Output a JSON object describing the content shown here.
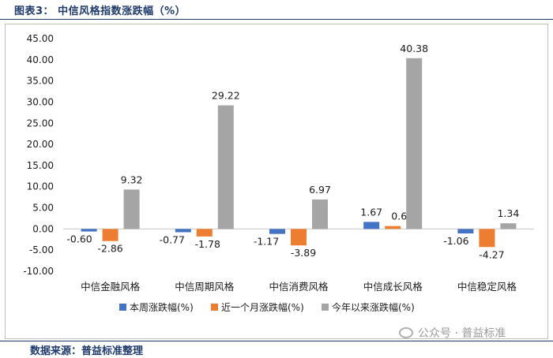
{
  "header": {
    "title": "图表3：  中信风格指数涨跌幅（%）"
  },
  "footer": {
    "source": "数据来源：普益标准整理"
  },
  "watermark": {
    "text": "公众号 · 普益标准",
    "icon": "wechat-icon"
  },
  "colors": {
    "series1": "#4472c4",
    "series2": "#ed7d31",
    "series3": "#a5a5a5",
    "rule": "#1e3a6b"
  },
  "chart_data": {
    "type": "bar",
    "categories": [
      "中信金融风格",
      "中信周期风格",
      "中信消费风格",
      "中信成长风格",
      "中信稳定风格"
    ],
    "series": [
      {
        "name": "本周涨跌幅(%)",
        "values": [
          -0.6,
          -0.77,
          -1.17,
          1.67,
          -1.06
        ],
        "labels": [
          "-0.60",
          "-0.77",
          "-1.17",
          "1.67",
          "-1.06"
        ]
      },
      {
        "name": "近一个月涨跌幅(%)",
        "values": [
          -2.86,
          -1.78,
          -3.89,
          0.69,
          -4.27
        ],
        "labels": [
          "-2.86",
          "-1.78",
          "-3.89",
          "0.69",
          "-4.27"
        ]
      },
      {
        "name": "今年以来涨跌幅(%)",
        "values": [
          9.32,
          29.22,
          6.97,
          40.38,
          1.34
        ],
        "labels": [
          "9.32",
          "29.22",
          "6.97",
          "40.38",
          "1.34"
        ]
      }
    ],
    "yticks": [
      "45.00",
      "40.00",
      "35.00",
      "30.00",
      "25.00",
      "20.00",
      "15.00",
      "10.00",
      "5.00",
      "0.00",
      "-5.00",
      "-10.00"
    ],
    "ylim": [
      -10,
      45
    ],
    "grid": false,
    "legend": "bottom"
  }
}
